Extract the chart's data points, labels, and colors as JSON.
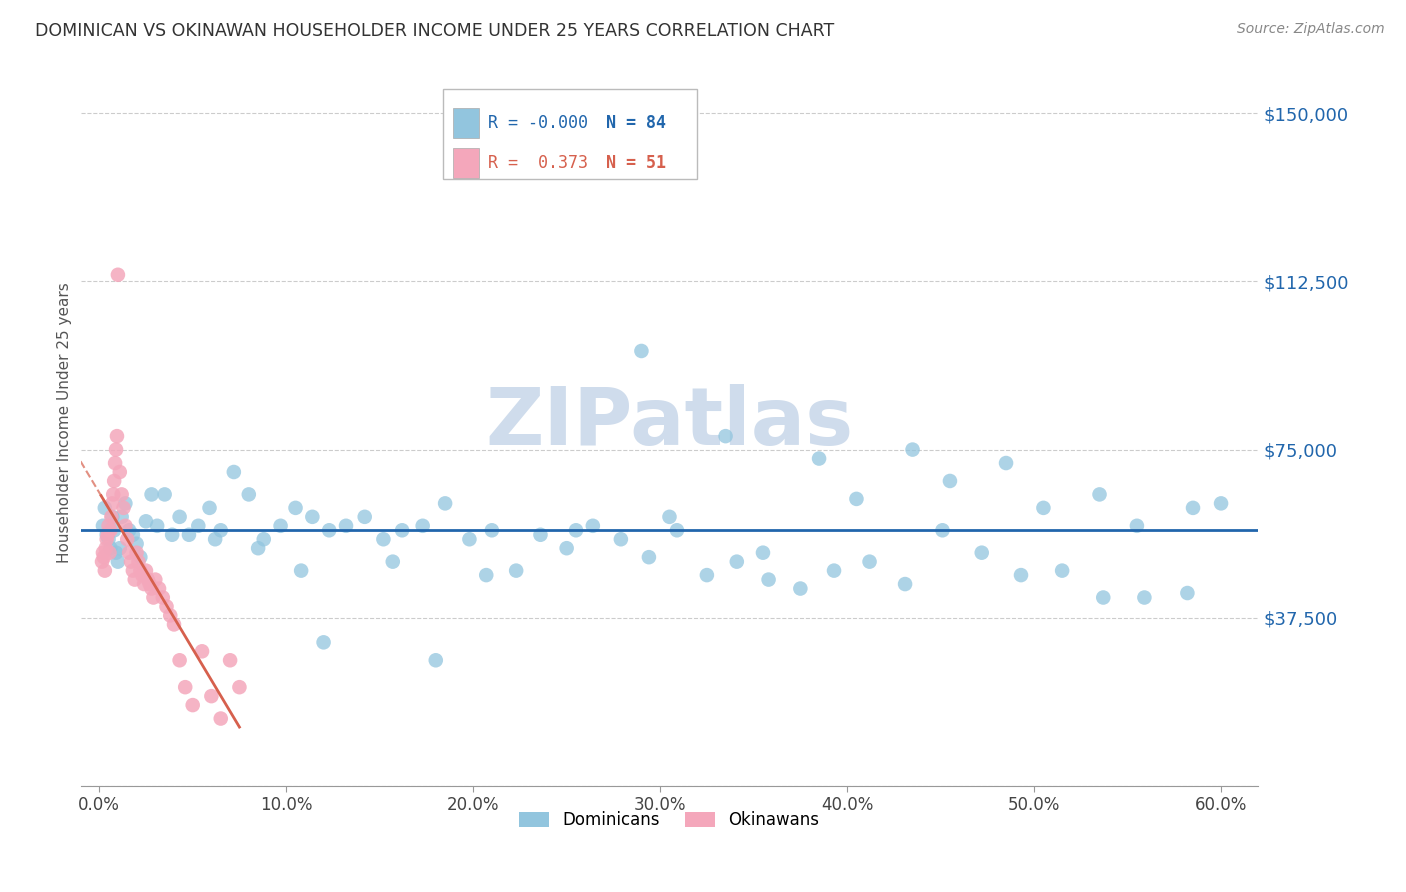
{
  "title": "DOMINICAN VS OKINAWAN HOUSEHOLDER INCOME UNDER 25 YEARS CORRELATION CHART",
  "source": "Source: ZipAtlas.com",
  "ylabel": "Householder Income Under 25 years",
  "xlabel_ticks": [
    "0.0%",
    "10.0%",
    "20.0%",
    "30.0%",
    "40.0%",
    "50.0%",
    "60.0%"
  ],
  "xlabel_vals": [
    0.0,
    10.0,
    20.0,
    30.0,
    40.0,
    50.0,
    60.0
  ],
  "ytick_vals": [
    0,
    37500,
    75000,
    112500,
    150000
  ],
  "ytick_labels": [
    "",
    "$37,500",
    "$75,000",
    "$112,500",
    "$150,000"
  ],
  "ylim": [
    0,
    162000
  ],
  "xlim": [
    -1.0,
    62
  ],
  "blue_color": "#92c5de",
  "pink_color": "#f4a7bb",
  "trend_blue": "#2166ac",
  "trend_pink": "#d6604d",
  "grid_color": "#cccccc",
  "background": "#ffffff",
  "watermark": "ZIPatlas",
  "watermark_color": "#cfdcec",
  "dominicans_R": "-0.000",
  "dominicans_N": "84",
  "okinawans_R": "0.373",
  "okinawans_N": "51",
  "blue_dots_x": [
    0.2,
    0.3,
    0.4,
    0.5,
    0.6,
    0.7,
    0.8,
    0.9,
    1.0,
    1.1,
    1.2,
    1.4,
    1.6,
    1.8,
    2.0,
    2.2,
    2.5,
    2.8,
    3.1,
    3.5,
    3.9,
    4.3,
    4.8,
    5.3,
    5.9,
    6.5,
    7.2,
    8.0,
    8.8,
    9.7,
    10.5,
    11.4,
    12.3,
    13.2,
    14.2,
    15.2,
    16.2,
    17.3,
    18.5,
    19.8,
    21.0,
    22.3,
    23.6,
    25.0,
    26.4,
    27.9,
    29.4,
    30.9,
    32.5,
    34.1,
    35.8,
    37.5,
    39.3,
    41.2,
    43.1,
    45.1,
    47.2,
    49.3,
    51.5,
    53.7,
    55.9,
    58.2,
    29.0,
    33.5,
    38.5,
    43.5,
    48.5,
    53.5,
    58.5,
    10.8,
    15.7,
    20.7,
    25.5,
    30.5,
    35.5,
    40.5,
    45.5,
    50.5,
    55.5,
    60.0,
    6.2,
    8.5,
    12.0,
    18.0
  ],
  "blue_dots_y": [
    58000,
    62000,
    56000,
    55000,
    53000,
    60000,
    57000,
    52000,
    50000,
    53000,
    60000,
    63000,
    57000,
    56000,
    54000,
    51000,
    59000,
    65000,
    58000,
    65000,
    56000,
    60000,
    56000,
    58000,
    62000,
    57000,
    70000,
    65000,
    55000,
    58000,
    62000,
    60000,
    57000,
    58000,
    60000,
    55000,
    57000,
    58000,
    63000,
    55000,
    57000,
    48000,
    56000,
    53000,
    58000,
    55000,
    51000,
    57000,
    47000,
    50000,
    46000,
    44000,
    48000,
    50000,
    45000,
    57000,
    52000,
    47000,
    48000,
    42000,
    42000,
    43000,
    97000,
    78000,
    73000,
    75000,
    72000,
    65000,
    62000,
    48000,
    50000,
    47000,
    57000,
    60000,
    52000,
    64000,
    68000,
    62000,
    58000,
    63000,
    55000,
    53000,
    32000,
    28000
  ],
  "pink_dots_x": [
    0.15,
    0.2,
    0.25,
    0.3,
    0.35,
    0.4,
    0.45,
    0.5,
    0.55,
    0.6,
    0.65,
    0.7,
    0.75,
    0.8,
    0.85,
    0.9,
    0.95,
    1.0,
    1.1,
    1.2,
    1.3,
    1.4,
    1.5,
    1.6,
    1.7,
    1.8,
    1.9,
    2.0,
    2.1,
    2.2,
    2.3,
    2.4,
    2.5,
    2.6,
    2.7,
    2.8,
    2.9,
    3.0,
    3.2,
    3.4,
    3.6,
    3.8,
    4.0,
    4.3,
    4.6,
    5.0,
    5.5,
    6.0,
    6.5,
    7.0,
    7.5
  ],
  "pink_dots_y": [
    50000,
    52000,
    51000,
    48000,
    53000,
    55000,
    56000,
    58000,
    52000,
    57000,
    60000,
    63000,
    65000,
    68000,
    72000,
    75000,
    78000,
    114000,
    70000,
    65000,
    62000,
    58000,
    55000,
    52000,
    50000,
    48000,
    46000,
    52000,
    50000,
    48000,
    47000,
    45000,
    48000,
    46000,
    45000,
    44000,
    42000,
    46000,
    44000,
    42000,
    40000,
    38000,
    36000,
    28000,
    22000,
    18000,
    30000,
    20000,
    15000,
    28000,
    22000
  ],
  "pink_trend_x0": 0.15,
  "pink_trend_y0": 55000,
  "pink_trend_x1": 4.5,
  "pink_trend_y1": 20000,
  "pink_dash_x0": -1.0,
  "pink_dash_y0": 145000,
  "pink_dash_x1": 0.8,
  "pink_dash_y1": 80000,
  "blue_trend_y": 57000
}
